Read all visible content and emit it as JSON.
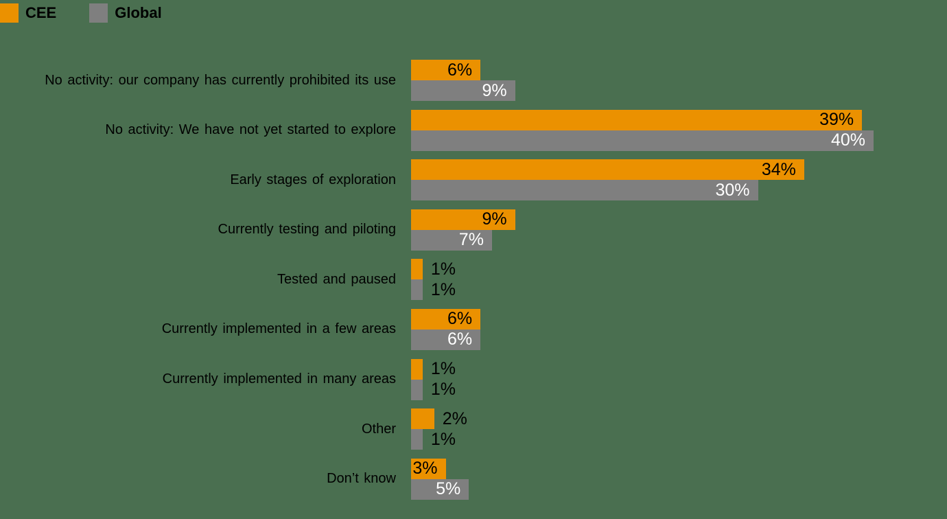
{
  "background_color": "#4A6F50",
  "colors": {
    "cee_bar": "#EB9100",
    "global_bar": "#7F7F7F",
    "label_on_cee": "#000000",
    "label_on_global": "#FFFFFF",
    "category_text": "#000000",
    "outside_label_text": "#000000"
  },
  "legend": {
    "position": "top-left",
    "items": [
      {
        "label": "CEE",
        "color": "#EB9100"
      },
      {
        "label": "Global",
        "color": "#7F7F7F"
      }
    ]
  },
  "chart_data": {
    "type": "bar",
    "orientation": "horizontal",
    "title": "",
    "xlabel": "",
    "ylabel": "",
    "xlim": [
      0,
      40
    ],
    "grid": false,
    "axes_visible": false,
    "value_suffix": "%",
    "data_label_style": "inside bar end; outside to the right for bars under 3%",
    "categories": [
      "No activity: our company has currently prohibited its use",
      "No activity: We have not yet started to explore",
      "Early stages of exploration",
      "Currently testing and piloting",
      "Tested and paused",
      "Currently implemented in a few areas",
      "Currently implemented in many areas",
      "Other",
      "Don’t know"
    ],
    "series": [
      {
        "name": "CEE",
        "color": "#EB9100",
        "label_color": "#000000",
        "values": [
          6,
          39,
          34,
          9,
          1,
          6,
          1,
          2,
          3
        ]
      },
      {
        "name": "Global",
        "color": "#7F7F7F",
        "label_color": "#FFFFFF",
        "values": [
          9,
          40,
          30,
          7,
          1,
          6,
          1,
          1,
          5
        ]
      }
    ]
  }
}
